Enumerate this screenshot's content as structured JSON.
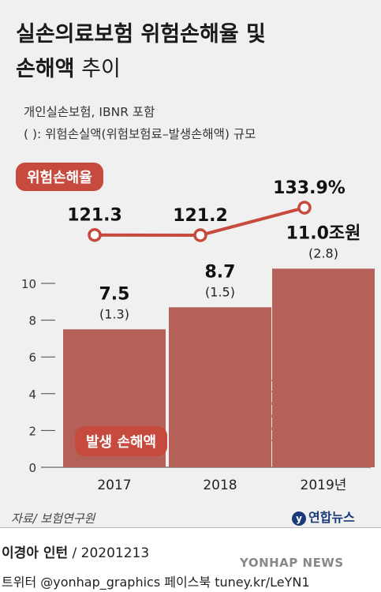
{
  "title_line1": "실손의료보험 위험손해율 및",
  "title_line2_bold": "손해액",
  "title_line2_light": " 추이",
  "subtitle1": "개인실손보험, IBNR 포함",
  "subtitle2": "( ):  위험손실액(위험보험료–발생손해액) 규모",
  "rate_label": "위험손해율",
  "loss_label": "발생 손해액",
  "source": "자료/ 보험연구원",
  "logo_text": "연합뉴스",
  "footer_author": "이경아 인턴",
  "footer_date": " / 20201213",
  "footer_social": "트위터 @yonhap_graphics  페이스북 tuney.kr/LeYN1",
  "watermark": "YONHAP NEWS",
  "colors": {
    "bar": "#b5615a",
    "line": "#c64a3d",
    "background": "#f0f0f0"
  },
  "chart_data": {
    "type": "bar",
    "categories": [
      "2017",
      "2018",
      "2019년"
    ],
    "series": [
      {
        "name": "발생 손해액",
        "values": [
          7.5,
          8.7,
          11.0
        ],
        "value_labels": [
          "7.5",
          "8.7",
          "11.0조원"
        ],
        "sub_labels": [
          "(1.3)",
          "(1.5)",
          "(2.8)"
        ]
      },
      {
        "name": "위험손해율",
        "type": "line",
        "values": [
          121.3,
          121.2,
          133.9
        ],
        "value_labels": [
          "121.3",
          "121.2",
          "133.9%"
        ]
      }
    ],
    "yticks": [
      "0",
      "2",
      "4",
      "6",
      "8",
      "10"
    ],
    "ylim": [
      0,
      10.8
    ],
    "grid": false
  }
}
